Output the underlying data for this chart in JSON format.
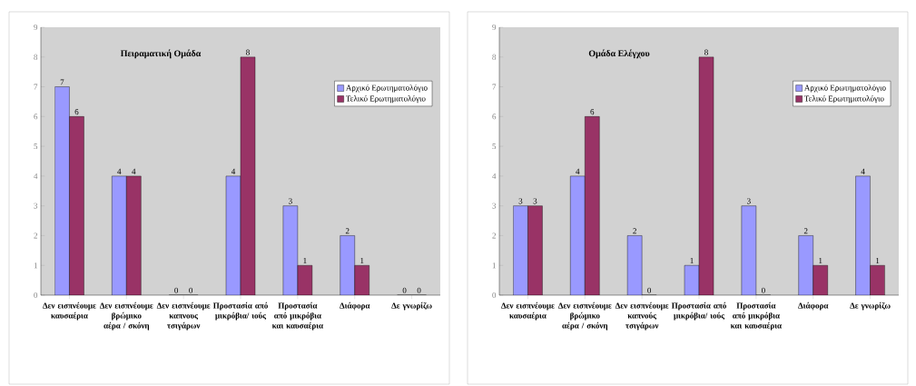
{
  "chart_data": [
    {
      "type": "bar",
      "title": "Πειραματική Ομάδα",
      "categories": [
        "Δεν εισπνέουμε καυσαέρια",
        "Δεν εισπνέουμε βρώμικο αέρα / σκόνη",
        "Δεν εισπνέουμε καπνους τσιγάρων",
        "Προστασία από μικρόβια/ ιούς",
        "Προστασία από μικρόβια και καυσαέρια",
        "Διάφορα",
        "Δε γνωρίζω"
      ],
      "series": [
        {
          "name": "Αρχικό Ερωτηματολόγιο",
          "color": "#9999ff",
          "values": [
            7,
            4,
            0,
            4,
            3,
            2,
            0
          ]
        },
        {
          "name": "Τελικό Ερωτηματολόγιο",
          "color": "#993366",
          "values": [
            6,
            4,
            0,
            8,
            1,
            1,
            0
          ]
        }
      ],
      "ylim": [
        0,
        9
      ],
      "yticks": [
        0,
        1,
        2,
        3,
        4,
        5,
        6,
        7,
        8,
        9
      ],
      "data_labels": true,
      "legend": "right",
      "grid": false
    },
    {
      "type": "bar",
      "title": "Ομάδα Ελέγχου",
      "categories": [
        "Δεν εισπνέουμε καυσαέρια",
        "Δεν εισπνέουμε βρώμικο αέρα / σκόνη",
        "Δεν εισπνέουμε καπνούς τσιγάρων",
        "Προστασία από μικρόβια/ ιούς",
        "Προστασία από μικρόβια και καυσαέρια",
        "Διάφορα",
        "Δε γνωρίζω"
      ],
      "series": [
        {
          "name": "Αρχικό Ερωτηματολόγιο",
          "color": "#9999ff",
          "values": [
            3,
            4,
            2,
            1,
            3,
            2,
            4
          ]
        },
        {
          "name": "Τελικό Ερωτηματολόγιο",
          "color": "#993366",
          "values": [
            3,
            6,
            0,
            8,
            0,
            1,
            1
          ]
        }
      ],
      "ylim": [
        0,
        9
      ],
      "yticks": [
        0,
        1,
        2,
        3,
        4,
        5,
        6,
        7,
        8,
        9
      ],
      "data_labels": true,
      "legend": "right",
      "grid": false
    }
  ]
}
